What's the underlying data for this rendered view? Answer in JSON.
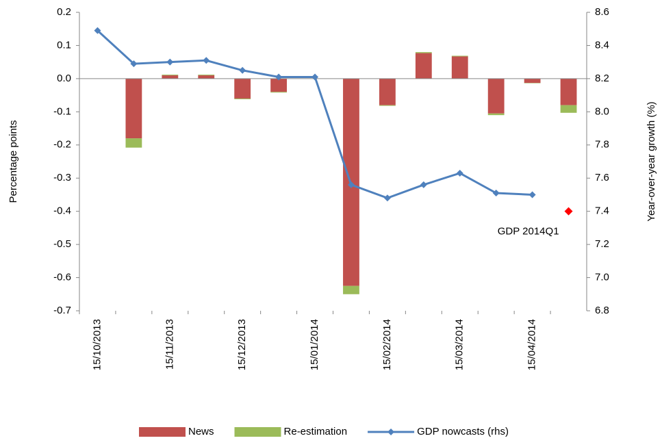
{
  "chart_data": {
    "type": "bar_line",
    "categories": [
      "15/10/2013",
      null,
      "15/11/2013",
      null,
      "15/12/2013",
      null,
      "15/01/2014",
      null,
      "15/02/2014",
      null,
      "15/03/2014",
      null,
      "15/04/2014",
      null
    ],
    "series": [
      {
        "name": "News",
        "color": "#c0504d",
        "type": "bar",
        "values": [
          0,
          -0.18,
          0.01,
          0.01,
          -0.06,
          -0.04,
          0,
          -0.625,
          -0.08,
          0.077,
          0.067,
          -0.105,
          -0.013,
          -0.08
        ]
      },
      {
        "name": "Re-estimation",
        "color": "#9bbb59",
        "type": "bar",
        "values": [
          0,
          -0.028,
          0.002,
          0.002,
          -0.002,
          -0.002,
          0,
          -0.025,
          -0.002,
          0.003,
          0.002,
          -0.005,
          -0.001,
          -0.023
        ]
      },
      {
        "name": "GDP nowcasts (rhs)",
        "color": "#4f81bd",
        "type": "line",
        "axis": "y2",
        "values": [
          8.49,
          8.29,
          8.3,
          8.31,
          8.25,
          8.21,
          8.21,
          7.56,
          7.48,
          7.56,
          7.63,
          7.51,
          7.5,
          null
        ]
      }
    ],
    "point": {
      "label": "GDP 2014Q1",
      "value": 7.4,
      "color": "#ff0000"
    },
    "ylabel": "Percentage points",
    "y2label": "Year-over-year growth (%)",
    "ylim": [
      -0.7,
      0.2
    ],
    "yticks": [
      0.2,
      0.1,
      {
        "value": 0,
        "label": "0.0"
      },
      -0.1,
      -0.2,
      -0.3,
      -0.4,
      -0.5,
      -0.6,
      -0.7
    ],
    "y2lim": [
      6.8,
      8.6
    ],
    "y2ticks": [
      8.6,
      8.4,
      8.2,
      {
        "value": 8,
        "label": "8.0"
      },
      7.8,
      7.6,
      7.4,
      7.2,
      {
        "value": 7,
        "label": "7.0"
      },
      6.8
    ],
    "grid": false,
    "legend": "bottom"
  }
}
